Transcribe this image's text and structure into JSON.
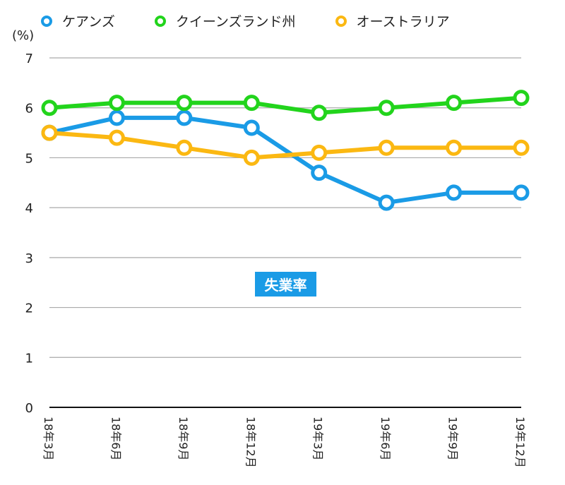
{
  "chart_data": {
    "type": "line",
    "title": "失業率",
    "ylabel": "(%)",
    "xlabel": "",
    "categories": [
      "18年3月",
      "18年6月",
      "18年9月",
      "18年12月",
      "19年3月",
      "19年6月",
      "19年9月",
      "19年12月"
    ],
    "ylim": [
      0,
      7
    ],
    "yticks": [
      "0",
      "1",
      "2",
      "3",
      "4",
      "5",
      "6",
      "7"
    ],
    "grid": true,
    "legend_position": "top",
    "series": [
      {
        "name": "ケアンズ",
        "color": "#1a9be6",
        "values": [
          5.5,
          5.8,
          5.8,
          5.6,
          4.7,
          4.1,
          4.3,
          4.3
        ]
      },
      {
        "name": "クイーンズランド州",
        "color": "#22d41c",
        "values": [
          6.0,
          6.1,
          6.1,
          6.1,
          5.9,
          6.0,
          6.1,
          6.2
        ]
      },
      {
        "name": "オーストラリア",
        "color": "#fbb812",
        "values": [
          5.5,
          5.4,
          5.2,
          5.0,
          5.1,
          5.2,
          5.2,
          5.2
        ]
      }
    ],
    "title_bg_color": "#1a9be6"
  }
}
